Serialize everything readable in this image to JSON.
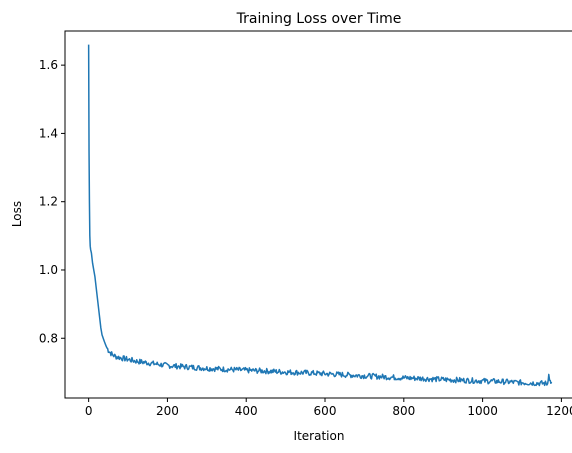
{
  "chart_data": {
    "type": "line",
    "title": "Training Loss over Time",
    "xlabel": "Iteration",
    "ylabel": "Loss",
    "xlim": [
      -60,
      1232
    ],
    "ylim": [
      0.625,
      1.7
    ],
    "xticks": [
      0,
      200,
      400,
      600,
      800,
      1000,
      1200
    ],
    "yticks": [
      0.8,
      1.0,
      1.2,
      1.4,
      1.6
    ],
    "grid": false,
    "legend": "none",
    "series": [
      {
        "color": "#1f77b4",
        "points": [
          [
            0,
            1.66
          ],
          [
            1,
            1.35
          ],
          [
            2,
            1.2
          ],
          [
            3,
            1.1
          ],
          [
            4,
            1.07
          ],
          [
            5,
            1.06
          ],
          [
            7,
            1.05
          ],
          [
            10,
            1.02
          ],
          [
            13,
            1.0
          ],
          [
            16,
            0.98
          ],
          [
            19,
            0.95
          ],
          [
            22,
            0.92
          ],
          [
            25,
            0.89
          ],
          [
            28,
            0.86
          ],
          [
            31,
            0.83
          ],
          [
            34,
            0.81
          ],
          [
            37,
            0.8
          ],
          [
            40,
            0.79
          ],
          [
            45,
            0.775
          ],
          [
            50,
            0.765
          ],
          [
            55,
            0.758
          ],
          [
            60,
            0.752
          ],
          [
            70,
            0.746
          ],
          [
            80,
            0.743
          ],
          [
            100,
            0.738
          ],
          [
            120,
            0.733
          ],
          [
            150,
            0.728
          ],
          [
            200,
            0.72
          ],
          [
            250,
            0.716
          ],
          [
            300,
            0.712
          ],
          [
            350,
            0.709
          ],
          [
            400,
            0.706
          ],
          [
            450,
            0.704
          ],
          [
            500,
            0.701
          ],
          [
            550,
            0.699
          ],
          [
            600,
            0.696
          ],
          [
            650,
            0.693
          ],
          [
            700,
            0.69
          ],
          [
            750,
            0.687
          ],
          [
            800,
            0.684
          ],
          [
            850,
            0.682
          ],
          [
            900,
            0.679
          ],
          [
            950,
            0.677
          ],
          [
            1000,
            0.675
          ],
          [
            1050,
            0.673
          ],
          [
            1100,
            0.67
          ],
          [
            1150,
            0.668
          ],
          [
            1165,
            0.667
          ],
          [
            1168,
            0.7
          ],
          [
            1170,
            0.675
          ],
          [
            1175,
            0.672
          ]
        ]
      }
    ]
  }
}
